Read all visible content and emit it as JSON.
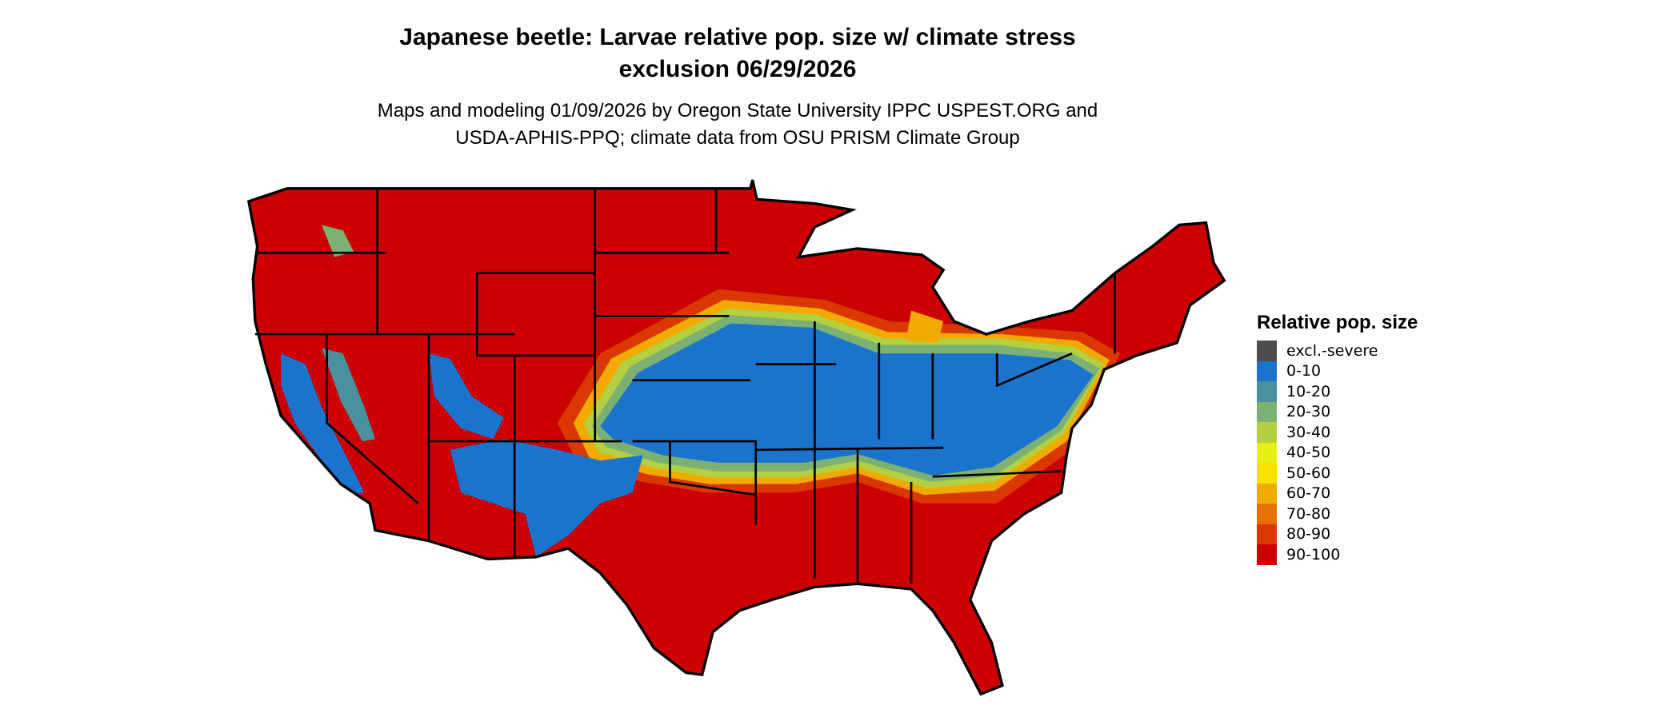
{
  "header": {
    "title_line1": "Japanese beetle: Larvae relative pop. size w/ climate stress",
    "title_line2": "exclusion 06/29/2026",
    "subtitle_line1": "Maps and modeling 01/09/2026 by Oregon State University IPPC USPEST.ORG and",
    "subtitle_line2": "USDA-APHIS-PPQ; climate data from OSU PRISM Climate Group"
  },
  "map": {
    "region": "Contiguous United States",
    "dominant_class": "90-100",
    "band_class": "0-10"
  },
  "legend": {
    "title": "Relative pop. size",
    "items": [
      {
        "label": "excl.-severe",
        "color": "#4d4d4d"
      },
      {
        "label": "0-10",
        "color": "#1a73cc"
      },
      {
        "label": "10-20",
        "color": "#4a909e"
      },
      {
        "label": "20-30",
        "color": "#7db073"
      },
      {
        "label": "30-40",
        "color": "#b2d042"
      },
      {
        "label": "40-50",
        "color": "#e6f014"
      },
      {
        "label": "50-60",
        "color": "#f8e000"
      },
      {
        "label": "60-70",
        "color": "#f0aa00"
      },
      {
        "label": "70-80",
        "color": "#e47000"
      },
      {
        "label": "80-90",
        "color": "#da3800"
      },
      {
        "label": "90-100",
        "color": "#cc0000"
      }
    ]
  }
}
